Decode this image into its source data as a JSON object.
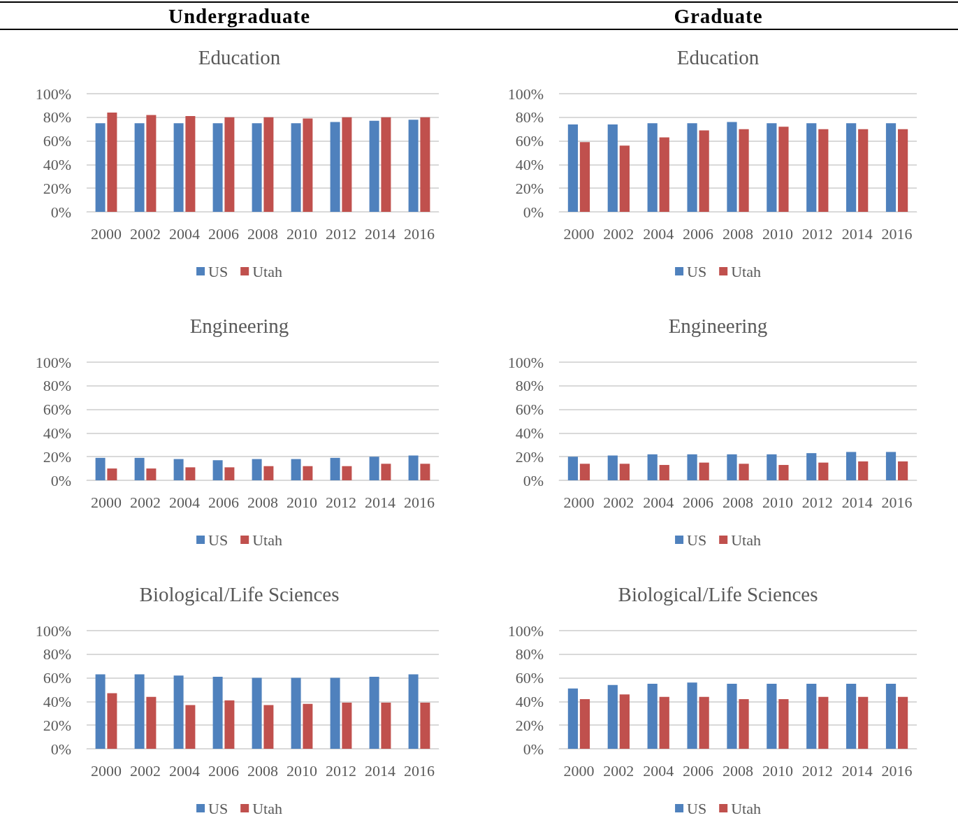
{
  "chart_data": [
    {
      "type": "bar",
      "title": "Education",
      "annotations": [
        "Undergraduate"
      ],
      "categories": [
        "2000",
        "2002",
        "2004",
        "2006",
        "2008",
        "2010",
        "2012",
        "2014",
        "2016"
      ],
      "ylim": [
        0,
        100
      ],
      "yticks": [
        {
          "value": 0,
          "label": "0%"
        },
        {
          "value": 20,
          "label": "20%"
        },
        {
          "value": 40,
          "label": "40%"
        },
        {
          "value": 60,
          "label": "60%"
        },
        {
          "value": 80,
          "label": "80%"
        },
        {
          "value": 100,
          "label": "100%"
        }
      ],
      "grid": "y",
      "legend": "bottom",
      "series": [
        {
          "name": "US",
          "color": "#4f81bd",
          "values": [
            75,
            75,
            75,
            75,
            75,
            75,
            76,
            77,
            78
          ]
        },
        {
          "name": "Utah",
          "color": "#c0504d",
          "values": [
            84,
            82,
            81,
            80,
            80,
            79,
            80,
            80,
            80
          ]
        }
      ]
    },
    {
      "type": "bar",
      "title": "Education",
      "annotations": [
        "Graduate"
      ],
      "categories": [
        "2000",
        "2002",
        "2004",
        "2006",
        "2008",
        "2010",
        "2012",
        "2014",
        "2016"
      ],
      "ylim": [
        0,
        100
      ],
      "yticks": [
        {
          "value": 0,
          "label": "0%"
        },
        {
          "value": 20,
          "label": "20%"
        },
        {
          "value": 40,
          "label": "40%"
        },
        {
          "value": 60,
          "label": "60%"
        },
        {
          "value": 80,
          "label": "80%"
        },
        {
          "value": 100,
          "label": "100%"
        }
      ],
      "grid": "y",
      "legend": "bottom",
      "series": [
        {
          "name": "US",
          "color": "#4f81bd",
          "values": [
            74,
            74,
            75,
            75,
            76,
            75,
            75,
            75,
            75
          ]
        },
        {
          "name": "Utah",
          "color": "#c0504d",
          "values": [
            59,
            56,
            63,
            69,
            70,
            72,
            70,
            70,
            70
          ]
        }
      ]
    },
    {
      "type": "bar",
      "title": "Engineering",
      "categories": [
        "2000",
        "2002",
        "2004",
        "2006",
        "2008",
        "2010",
        "2012",
        "2014",
        "2016"
      ],
      "ylim": [
        0,
        100
      ],
      "yticks": [
        {
          "value": 0,
          "label": "0%"
        },
        {
          "value": 20,
          "label": "20%"
        },
        {
          "value": 40,
          "label": "40%"
        },
        {
          "value": 60,
          "label": "60%"
        },
        {
          "value": 80,
          "label": "80%"
        },
        {
          "value": 100,
          "label": "100%"
        }
      ],
      "grid": "y",
      "legend": "bottom",
      "series": [
        {
          "name": "US",
          "color": "#4f81bd",
          "values": [
            19,
            19,
            18,
            17,
            18,
            18,
            19,
            20,
            21
          ]
        },
        {
          "name": "Utah",
          "color": "#c0504d",
          "values": [
            10,
            10,
            11,
            11,
            12,
            12,
            12,
            14,
            14
          ]
        }
      ]
    },
    {
      "type": "bar",
      "title": "Engineering",
      "categories": [
        "2000",
        "2002",
        "2004",
        "2006",
        "2008",
        "2010",
        "2012",
        "2014",
        "2016"
      ],
      "ylim": [
        0,
        100
      ],
      "yticks": [
        {
          "value": 0,
          "label": "0%"
        },
        {
          "value": 20,
          "label": "20%"
        },
        {
          "value": 40,
          "label": "40%"
        },
        {
          "value": 60,
          "label": "60%"
        },
        {
          "value": 80,
          "label": "80%"
        },
        {
          "value": 100,
          "label": "100%"
        }
      ],
      "grid": "y",
      "legend": "bottom",
      "series": [
        {
          "name": "US",
          "color": "#4f81bd",
          "values": [
            20,
            21,
            22,
            22,
            22,
            22,
            23,
            24,
            24
          ]
        },
        {
          "name": "Utah",
          "color": "#c0504d",
          "values": [
            14,
            14,
            13,
            15,
            14,
            13,
            15,
            16,
            16
          ]
        }
      ]
    },
    {
      "type": "bar",
      "title": "Biological/Life Sciences",
      "categories": [
        "2000",
        "2002",
        "2004",
        "2006",
        "2008",
        "2010",
        "2012",
        "2014",
        "2016"
      ],
      "ylim": [
        0,
        100
      ],
      "yticks": [
        {
          "value": 0,
          "label": "0%"
        },
        {
          "value": 20,
          "label": "20%"
        },
        {
          "value": 40,
          "label": "40%"
        },
        {
          "value": 60,
          "label": "60%"
        },
        {
          "value": 80,
          "label": "80%"
        },
        {
          "value": 100,
          "label": "100%"
        }
      ],
      "grid": "y",
      "legend": "bottom",
      "series": [
        {
          "name": "US",
          "color": "#4f81bd",
          "values": [
            63,
            63,
            62,
            61,
            60,
            60,
            60,
            61,
            63
          ]
        },
        {
          "name": "Utah",
          "color": "#c0504d",
          "values": [
            47,
            44,
            37,
            41,
            37,
            38,
            39,
            39,
            39
          ]
        }
      ]
    },
    {
      "type": "bar",
      "title": "Biological/Life Sciences",
      "categories": [
        "2000",
        "2002",
        "2004",
        "2006",
        "2008",
        "2010",
        "2012",
        "2014",
        "2016"
      ],
      "ylim": [
        0,
        100
      ],
      "yticks": [
        {
          "value": 0,
          "label": "0%"
        },
        {
          "value": 20,
          "label": "20%"
        },
        {
          "value": 40,
          "label": "40%"
        },
        {
          "value": 60,
          "label": "60%"
        },
        {
          "value": 80,
          "label": "80%"
        },
        {
          "value": 100,
          "label": "100%"
        }
      ],
      "grid": "y",
      "legend": "bottom",
      "series": [
        {
          "name": "US",
          "color": "#4f81bd",
          "values": [
            51,
            54,
            55,
            56,
            55,
            55,
            55,
            55,
            55
          ]
        },
        {
          "name": "Utah",
          "color": "#c0504d",
          "values": [
            42,
            46,
            44,
            44,
            42,
            42,
            44,
            44,
            44
          ]
        }
      ]
    }
  ]
}
